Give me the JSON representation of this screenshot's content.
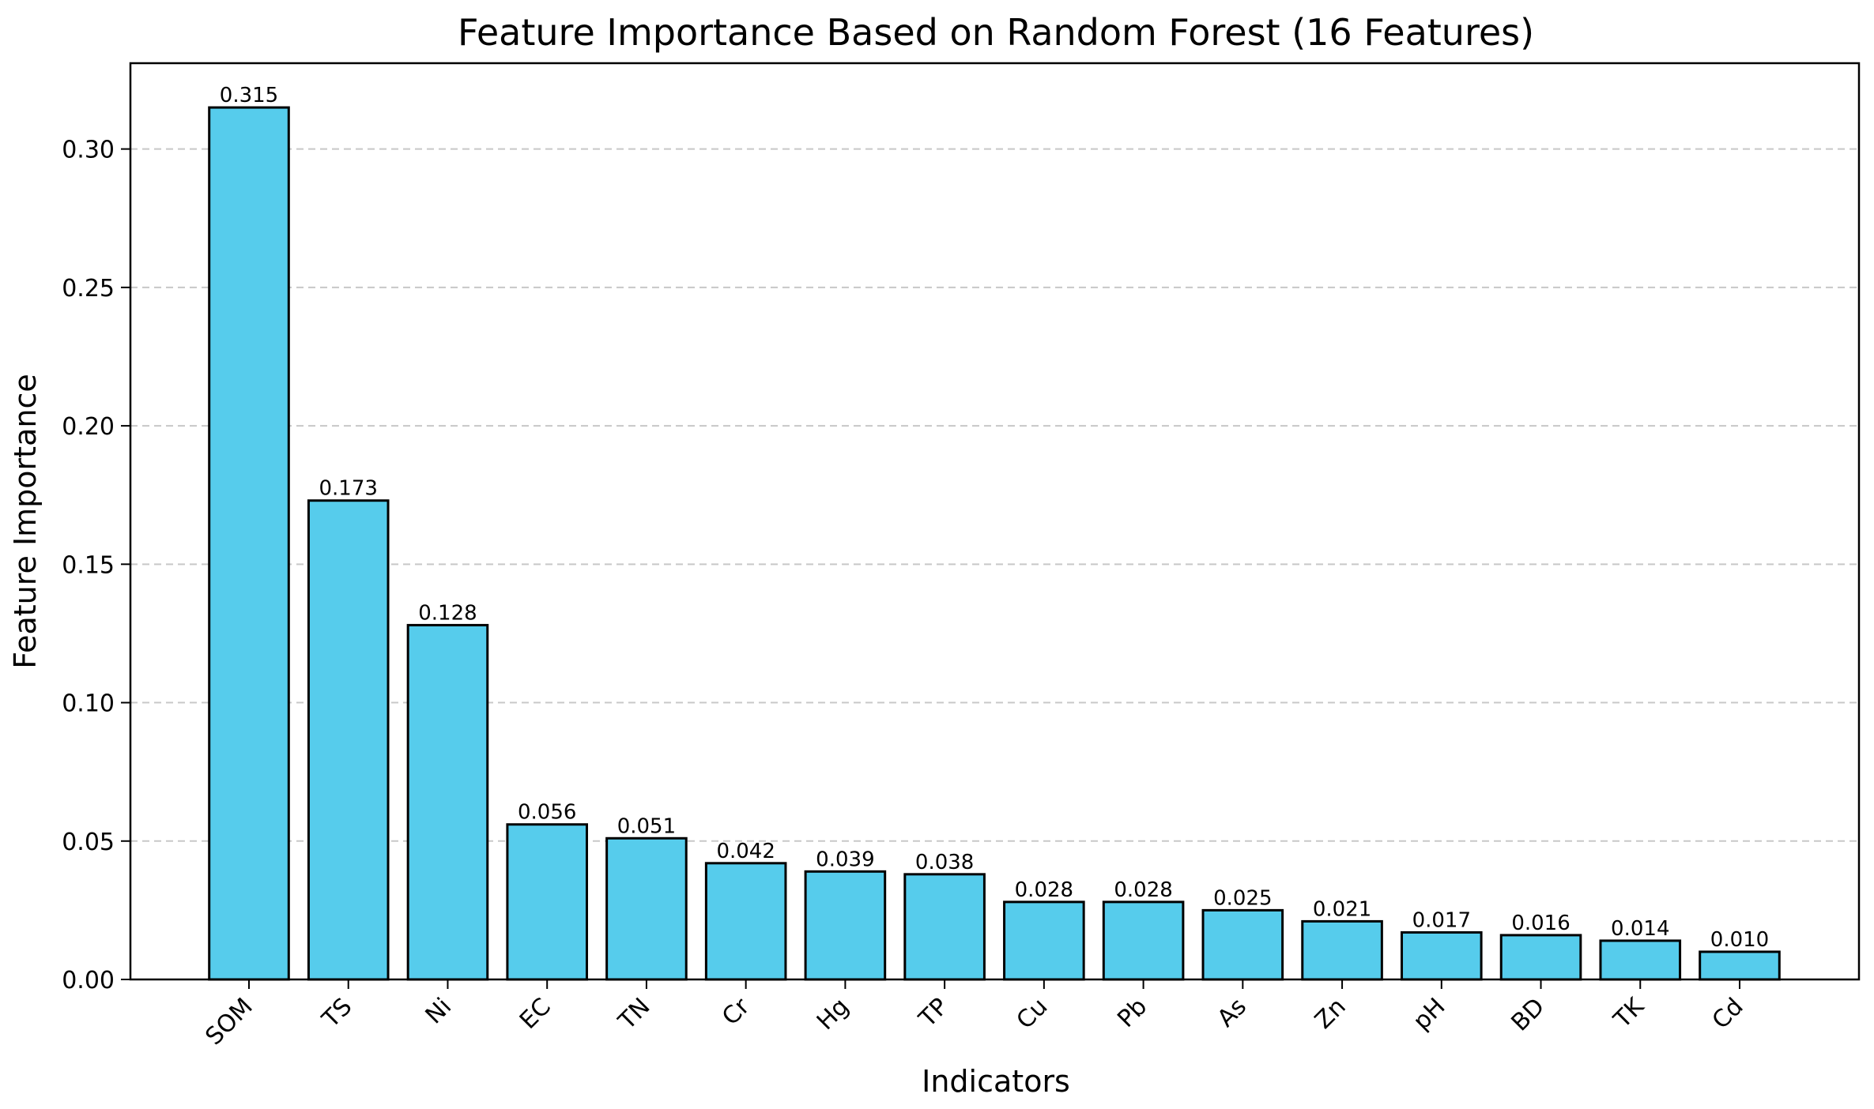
{
  "chart_data": {
    "type": "bar",
    "title": "Feature Importance Based on Random Forest (16 Features)",
    "xlabel": "Indicators",
    "ylabel": "Feature Importance",
    "categories": [
      "SOM",
      "TS",
      "Ni",
      "EC",
      "TN",
      "Cr",
      "Hg",
      "TP",
      "Cu",
      "Pb",
      "As",
      "Zn",
      "pH",
      "BD",
      "TK",
      "Cd"
    ],
    "values": [
      0.315,
      0.173,
      0.128,
      0.056,
      0.051,
      0.042,
      0.039,
      0.038,
      0.028,
      0.028,
      0.025,
      0.021,
      0.017,
      0.016,
      0.014,
      0.01
    ],
    "data_labels": [
      "0.315",
      "0.173",
      "0.128",
      "0.056",
      "0.051",
      "0.042",
      "0.039",
      "0.038",
      "0.028",
      "0.028",
      "0.025",
      "0.021",
      "0.017",
      "0.016",
      "0.014",
      "0.010"
    ],
    "yticks": [
      0.0,
      0.05,
      0.1,
      0.15,
      0.2,
      0.25,
      0.3
    ],
    "ytick_labels": [
      "0.00",
      "0.05",
      "0.10",
      "0.15",
      "0.20",
      "0.25",
      "0.30"
    ],
    "ylim": [
      0,
      0.331
    ],
    "grid": "y-dashed",
    "bar_color": "#56CCEC",
    "edge_color": "#000000",
    "grid_color": "#c8c8c8"
  }
}
